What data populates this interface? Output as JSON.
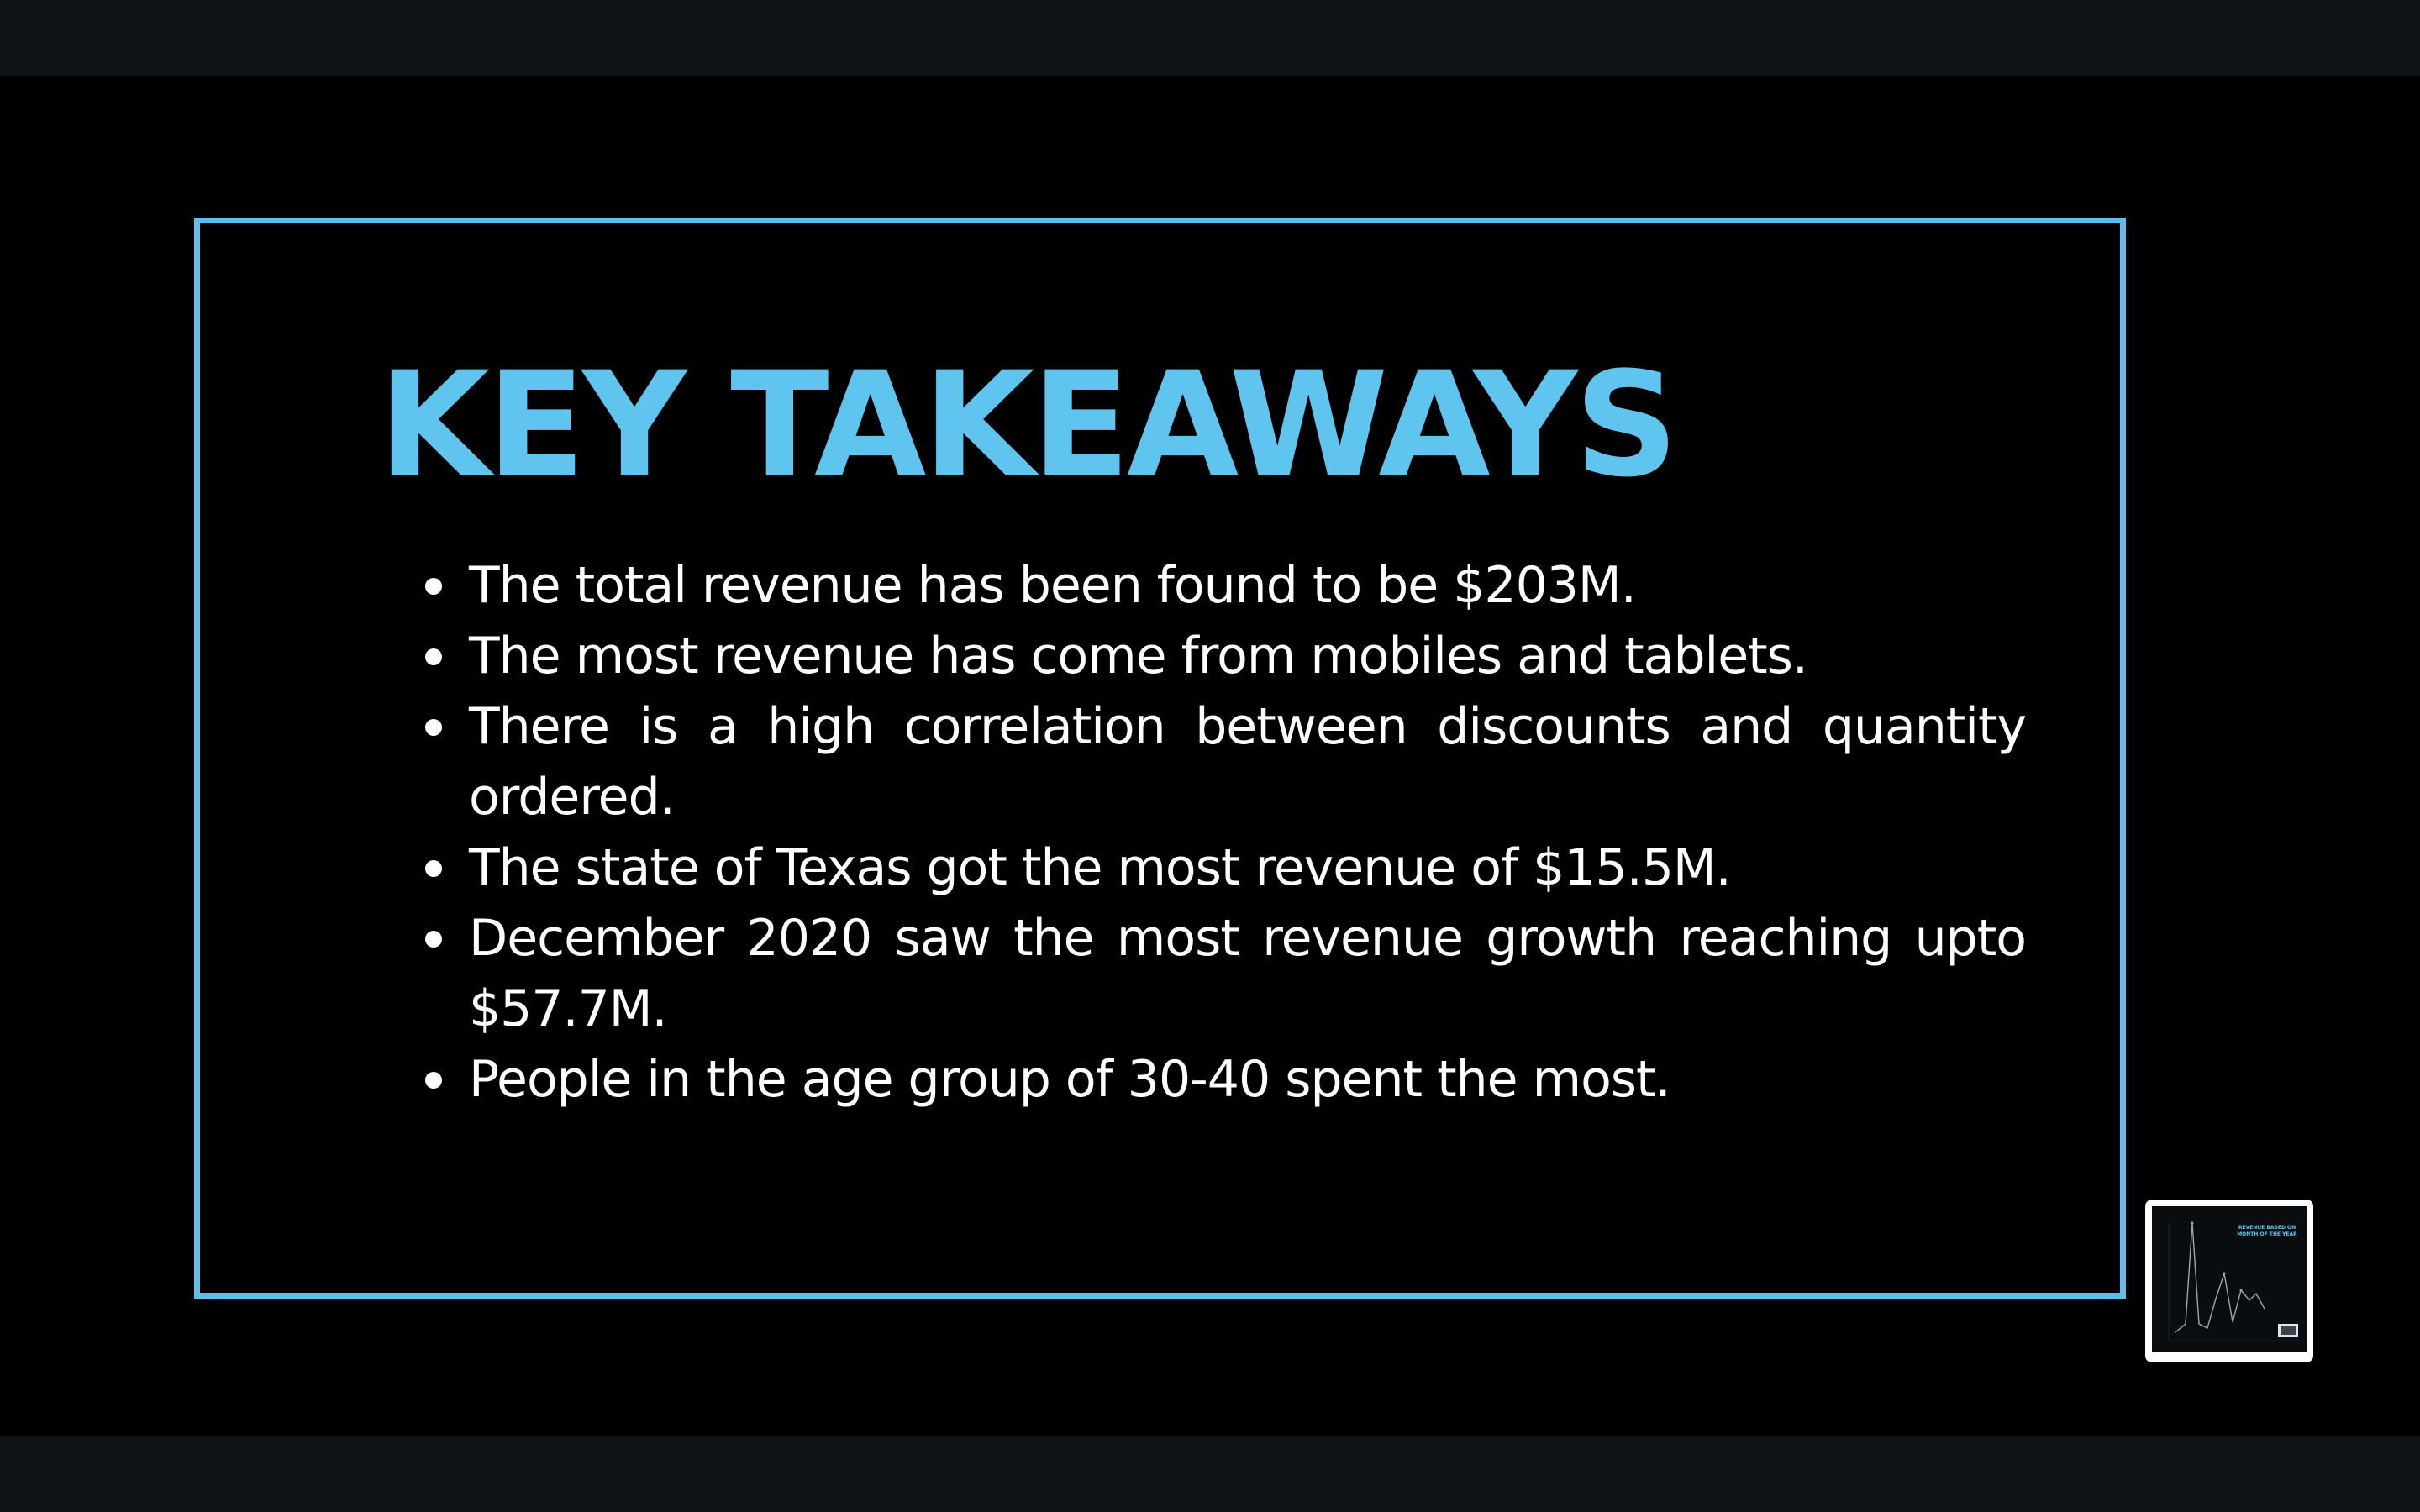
{
  "slide": {
    "title": "KEY TAKEAWAYS",
    "bullets": [
      "The total revenue has been found to be $203M.",
      "The most revenue has come from mobiles and tablets.",
      "There is a high correlation between discounts and quantity ordered.",
      "The state of Texas got the most revenue of $15.5M.",
      "December 2020 saw the most revenue growth  reaching upto $57.7M.",
      "People in the age group of 30-40 spent the most."
    ]
  },
  "thumbnail": {
    "title": "REVENUE BASED ON MONTH OF THE YEAR"
  },
  "colors": {
    "accent": "#5fc5ee",
    "frame": "#5fbfe8",
    "background": "#000000",
    "text": "#ffffff"
  }
}
